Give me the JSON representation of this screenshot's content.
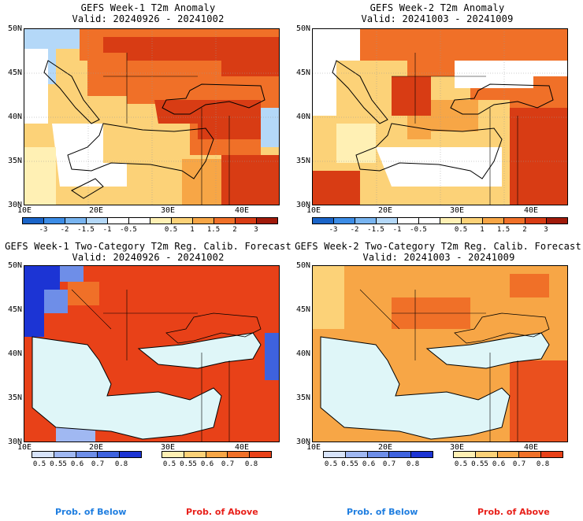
{
  "panels": [
    {
      "title": "GEFS Week-1 T2m Anomaly",
      "valid": "Valid: 20240926 - 20241002"
    },
    {
      "title": "GEFS Week-2 T2m Anomaly",
      "valid": "Valid: 20241003 - 20241009"
    },
    {
      "title": "GEFS Week-1 Two-Category T2m Reg. Calib. Forecast",
      "valid": "Valid: 20240926 - 20241002"
    },
    {
      "title": "GEFS Week-2 Two-Category T2m Reg. Calib. Forecast",
      "valid": "Valid: 20241003 - 20241009"
    }
  ],
  "lat_labels": [
    "50N",
    "45N",
    "40N",
    "35N",
    "30N"
  ],
  "lon_labels": [
    "10E",
    "20E",
    "30E",
    "40E"
  ],
  "anomaly_colorbar": {
    "labels": [
      "-3",
      "-2",
      "-1.5",
      "-1",
      "-0.5",
      "0.5",
      "1",
      "1.5",
      "2",
      "3"
    ],
    "colors": [
      "#1a64c8",
      "#3c8ce6",
      "#78b4f0",
      "#b4d8f8",
      "#ffffff",
      "#ffffff",
      "#fff0b4",
      "#fcd278",
      "#f7a646",
      "#f07028",
      "#d83c14",
      "#a01a0a"
    ]
  },
  "below_colorbar": {
    "labels": [
      "0.5",
      "0.55",
      "0.6",
      "0.7",
      "0.8"
    ],
    "colors": [
      "#d8e4fa",
      "#a0b8f2",
      "#6e8ee8",
      "#3e62de",
      "#1c34d4"
    ]
  },
  "above_colorbar": {
    "labels": [
      "0.5",
      "0.55",
      "0.6",
      "0.7",
      "0.8"
    ],
    "colors": [
      "#fff0b4",
      "#fcd278",
      "#f7a646",
      "#f07028",
      "#e84118"
    ]
  },
  "footer": {
    "below": "Prob. of Below",
    "above": "Prob. of Above"
  },
  "colors": {
    "sea": "#dff6f8",
    "below_text": "#1f7ee0",
    "above_text": "#e8201a"
  }
}
